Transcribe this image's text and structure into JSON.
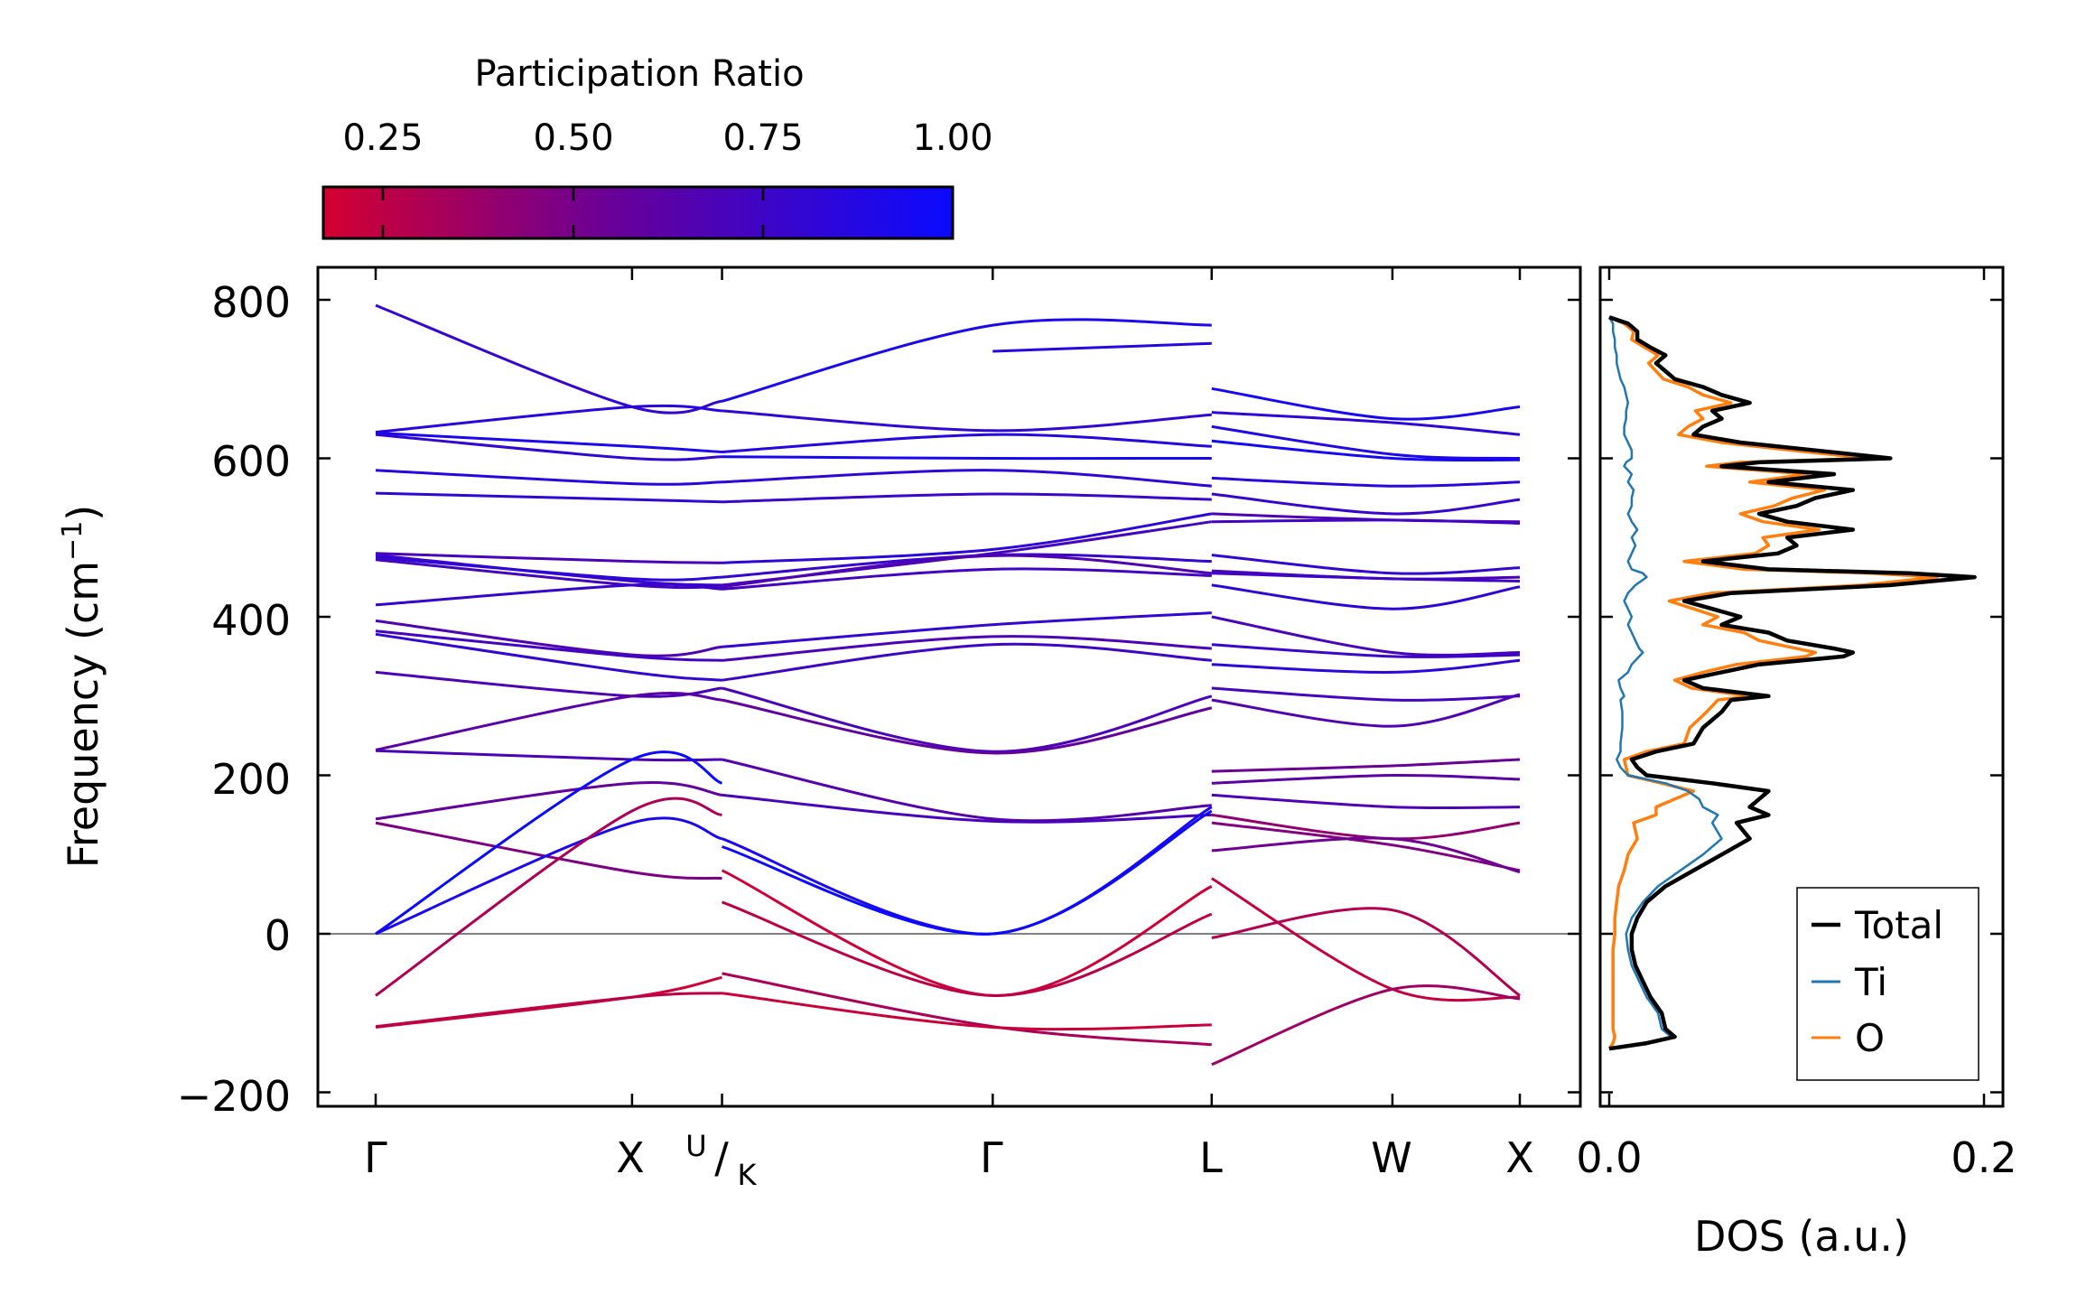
{
  "chart_data": [
    {
      "type": "line",
      "name": "phonon-band-structure",
      "ylabel": "Frequency (cm⁻¹)",
      "ylabel_parts": {
        "main": "Frequency (cm",
        "sup": "−1",
        "end": ")"
      },
      "ylim": [
        -215,
        840
      ],
      "yticks": [
        -200,
        0,
        200,
        400,
        600,
        800
      ],
      "ytick_labels": [
        "−200",
        "0",
        "200",
        "400",
        "600",
        "800"
      ],
      "kpath_labels": [
        "Γ",
        "X",
        "U|K",
        "Γ",
        "L",
        "W",
        "X"
      ],
      "kpath_text": {
        "gamma1": "Γ",
        "x1": "X",
        "u": "U",
        "slash": "/",
        "k": "K",
        "gamma2": "Γ",
        "l": "L",
        "w": "W",
        "x2": "X"
      },
      "kpath_positions": [
        0,
        0.322,
        0.435,
        0.775,
        1.05,
        1.277,
        1.437
      ],
      "segments": [
        {
          "x": [
            0,
            0.322,
            0.435
          ],
          "bands": [
            [
              793,
              665,
              672
            ],
            [
              633,
              665,
              660
            ],
            [
              632,
              615,
              608
            ],
            [
              630,
              600,
              602
            ],
            [
              585,
              568,
              570
            ],
            [
              556,
              548,
              545
            ],
            [
              480,
              470,
              468
            ],
            [
              478,
              445,
              440
            ],
            [
              475,
              448,
              450
            ],
            [
              472,
              440,
              438
            ],
            [
              415,
              440,
              435
            ],
            [
              395,
              352,
              362
            ],
            [
              382,
              350,
              345
            ],
            [
              378,
              330,
              320
            ],
            [
              330,
              300,
              310
            ],
            [
              232,
              300,
              295
            ],
            [
              231,
              220,
              220
            ],
            [
              145,
              190,
              175
            ],
            [
              140,
              78,
              70
            ],
            [
              0,
              220,
              190
            ],
            [
              0,
              140,
              120
            ],
            [
              -78,
              155,
              150
            ],
            [
              -118,
              -80,
              -55
            ],
            [
              -117,
              -80,
              -75
            ]
          ]
        },
        {
          "x": [
            0.435,
            0.775,
            1.05
          ],
          "bands": [
            [
              672,
              768,
              768
            ],
            [
              660,
              635,
              655
            ],
            [
              608,
              630,
              615
            ],
            [
              602,
              600,
              600
            ],
            [
              570,
              585,
              565
            ],
            [
              545,
              555,
              548
            ],
            [
              468,
              485,
              530
            ],
            [
              440,
              480,
              520
            ],
            [
              450,
              478,
              470
            ],
            [
              438,
              477,
              455
            ],
            [
              435,
              460,
              452
            ],
            [
              362,
              390,
              405
            ],
            [
              345,
              375,
              360
            ],
            [
              320,
              365,
              345
            ],
            [
              310,
              230,
              300
            ],
            [
              295,
              228,
              285
            ],
            [
              220,
              145,
              162
            ],
            [
              175,
              142,
              150
            ],
            [
              120,
              0,
              160
            ],
            [
              110,
              0,
              155
            ],
            [
              80,
              -78,
              60
            ],
            [
              40,
              -78,
              25
            ],
            [
              -50,
              -117,
              -140
            ],
            [
              -75,
              -118,
              -115
            ]
          ]
        },
        {
          "x": [
            0.775,
            1.05
          ],
          "bands": [
            [
              735,
              745
            ]
          ]
        },
        {
          "x": [
            1.05,
            1.277,
            1.437
          ],
          "bands": [
            [
              688,
              650,
              665
            ],
            [
              658,
              645,
              630
            ],
            [
              640,
              605,
              600
            ],
            [
              622,
              600,
              598
            ],
            [
              575,
              565,
              570
            ],
            [
              555,
              530,
              548
            ],
            [
              530,
              522,
              520
            ],
            [
              520,
              522,
              518
            ],
            [
              478,
              455,
              462
            ],
            [
              458,
              448,
              450
            ],
            [
              455,
              448,
              445
            ],
            [
              440,
              410,
              438
            ],
            [
              400,
              355,
              355
            ],
            [
              365,
              350,
              352
            ],
            [
              340,
              330,
              345
            ],
            [
              310,
              295,
              300
            ],
            [
              295,
              262,
              302
            ],
            [
              205,
              212,
              220
            ],
            [
              190,
              200,
              195
            ],
            [
              175,
              160,
              160
            ],
            [
              150,
              120,
              140
            ],
            [
              140,
              112,
              80
            ],
            [
              105,
              120,
              78
            ],
            [
              70,
              -70,
              -80
            ],
            [
              -5,
              30,
              -78
            ],
            [
              -165,
              -70,
              -82
            ]
          ]
        }
      ],
      "colorbar": {
        "title": "Participation Ratio",
        "range": [
          0.15,
          1.0
        ],
        "ticks": [
          0.25,
          0.5,
          0.75,
          1.0
        ],
        "tick_labels": [
          "0.25",
          "0.50",
          "0.75",
          "1.00"
        ],
        "low_color": "#d40030",
        "mid_color": "#6a0096",
        "high_color": "#0a0aff"
      },
      "zero_line_color": "#808080"
    },
    {
      "type": "line",
      "name": "density-of-states",
      "xlabel": "DOS (a.u.)",
      "xlim": [
        -0.006,
        0.21
      ],
      "xticks": [
        0.0,
        0.2
      ],
      "xtick_labels": [
        "0.0",
        "0.2"
      ],
      "ylim": [
        -215,
        840
      ],
      "orientation": "vertical",
      "series": [
        {
          "name": "Total",
          "color": "#000000",
          "width": 4.5,
          "y": [
            -145,
            -138,
            -130,
            -120,
            -100,
            -80,
            -60,
            -40,
            -20,
            0,
            20,
            40,
            60,
            80,
            100,
            120,
            140,
            150,
            160,
            170,
            180,
            190,
            200,
            210,
            220,
            230,
            240,
            260,
            280,
            295,
            300,
            310,
            320,
            330,
            340,
            350,
            355,
            360,
            370,
            380,
            390,
            400,
            410,
            420,
            430,
            440,
            450,
            455,
            460,
            470,
            480,
            490,
            500,
            510,
            520,
            530,
            540,
            550,
            560,
            570,
            580,
            590,
            595,
            600,
            610,
            620,
            630,
            640,
            650,
            660,
            670,
            680,
            690,
            700,
            710,
            720,
            730,
            740,
            750,
            760,
            770,
            778
          ],
          "v": [
            0.0,
            0.02,
            0.035,
            0.03,
            0.028,
            0.022,
            0.018,
            0.014,
            0.012,
            0.012,
            0.015,
            0.02,
            0.03,
            0.045,
            0.06,
            0.075,
            0.068,
            0.085,
            0.075,
            0.08,
            0.085,
            0.055,
            0.02,
            0.015,
            0.012,
            0.025,
            0.045,
            0.05,
            0.06,
            0.065,
            0.085,
            0.05,
            0.04,
            0.06,
            0.08,
            0.125,
            0.13,
            0.12,
            0.095,
            0.085,
            0.06,
            0.07,
            0.055,
            0.04,
            0.065,
            0.15,
            0.195,
            0.16,
            0.085,
            0.05,
            0.09,
            0.1,
            0.095,
            0.13,
            0.095,
            0.08,
            0.1,
            0.11,
            0.13,
            0.085,
            0.12,
            0.06,
            0.08,
            0.15,
            0.11,
            0.07,
            0.045,
            0.05,
            0.06,
            0.055,
            0.075,
            0.06,
            0.05,
            0.035,
            0.03,
            0.025,
            0.03,
            0.022,
            0.015,
            0.015,
            0.01,
            0.0
          ]
        },
        {
          "name": "Ti",
          "color": "#1f77b4",
          "width": 2.5,
          "y": [
            -145,
            -138,
            -130,
            -120,
            -100,
            -80,
            -60,
            -40,
            -20,
            0,
            20,
            40,
            60,
            80,
            100,
            120,
            140,
            150,
            160,
            170,
            180,
            190,
            200,
            210,
            220,
            230,
            240,
            260,
            280,
            295,
            300,
            310,
            320,
            330,
            340,
            350,
            355,
            360,
            370,
            380,
            390,
            400,
            410,
            420,
            430,
            440,
            450,
            455,
            460,
            470,
            480,
            490,
            500,
            510,
            520,
            530,
            540,
            550,
            560,
            570,
            580,
            590,
            595,
            600,
            610,
            620,
            630,
            640,
            650,
            660,
            670,
            680,
            690,
            700,
            710,
            720,
            730,
            740,
            750,
            760,
            770,
            778
          ],
          "v": [
            0.0,
            0.02,
            0.033,
            0.028,
            0.026,
            0.02,
            0.016,
            0.012,
            0.01,
            0.009,
            0.012,
            0.018,
            0.026,
            0.038,
            0.05,
            0.06,
            0.055,
            0.058,
            0.05,
            0.048,
            0.042,
            0.03,
            0.01,
            0.006,
            0.004,
            0.006,
            0.006,
            0.007,
            0.007,
            0.006,
            0.008,
            0.006,
            0.005,
            0.01,
            0.012,
            0.016,
            0.018,
            0.016,
            0.014,
            0.012,
            0.01,
            0.012,
            0.01,
            0.008,
            0.01,
            0.014,
            0.02,
            0.018,
            0.012,
            0.01,
            0.012,
            0.014,
            0.012,
            0.015,
            0.012,
            0.01,
            0.012,
            0.012,
            0.013,
            0.01,
            0.012,
            0.008,
            0.009,
            0.012,
            0.012,
            0.01,
            0.008,
            0.008,
            0.009,
            0.009,
            0.01,
            0.009,
            0.008,
            0.006,
            0.005,
            0.004,
            0.004,
            0.003,
            0.003,
            0.002,
            0.002,
            0.0
          ]
        },
        {
          "name": "O",
          "color": "#ff7f0e",
          "width": 3.5,
          "y": [
            -145,
            -138,
            -130,
            -120,
            -100,
            -80,
            -60,
            -40,
            -20,
            0,
            20,
            40,
            60,
            80,
            100,
            120,
            140,
            150,
            160,
            170,
            180,
            190,
            200,
            210,
            220,
            230,
            240,
            260,
            280,
            295,
            300,
            310,
            320,
            330,
            340,
            350,
            355,
            360,
            370,
            380,
            390,
            400,
            410,
            420,
            430,
            440,
            450,
            455,
            460,
            470,
            480,
            490,
            500,
            510,
            520,
            530,
            540,
            550,
            560,
            570,
            580,
            590,
            595,
            600,
            610,
            620,
            630,
            640,
            650,
            660,
            670,
            680,
            690,
            700,
            710,
            720,
            730,
            740,
            750,
            760,
            770,
            778
          ],
          "v": [
            0.0,
            0.002,
            0.003,
            0.002,
            0.002,
            0.002,
            0.002,
            0.002,
            0.002,
            0.003,
            0.003,
            0.004,
            0.005,
            0.008,
            0.01,
            0.015,
            0.013,
            0.025,
            0.025,
            0.035,
            0.045,
            0.028,
            0.01,
            0.009,
            0.008,
            0.02,
            0.04,
            0.043,
            0.052,
            0.058,
            0.075,
            0.044,
            0.035,
            0.05,
            0.068,
            0.105,
            0.11,
            0.1,
            0.08,
            0.072,
            0.05,
            0.058,
            0.045,
            0.032,
            0.055,
            0.135,
            0.175,
            0.14,
            0.072,
            0.04,
            0.078,
            0.085,
            0.082,
            0.112,
            0.082,
            0.07,
            0.088,
            0.098,
            0.115,
            0.075,
            0.106,
            0.052,
            0.07,
            0.138,
            0.098,
            0.06,
            0.037,
            0.042,
            0.05,
            0.046,
            0.065,
            0.05,
            0.042,
            0.029,
            0.025,
            0.021,
            0.026,
            0.019,
            0.012,
            0.013,
            0.008,
            0.0
          ]
        }
      ],
      "legend": {
        "position": "lower-right",
        "entries": [
          "Total",
          "Ti",
          "O"
        ]
      }
    }
  ]
}
